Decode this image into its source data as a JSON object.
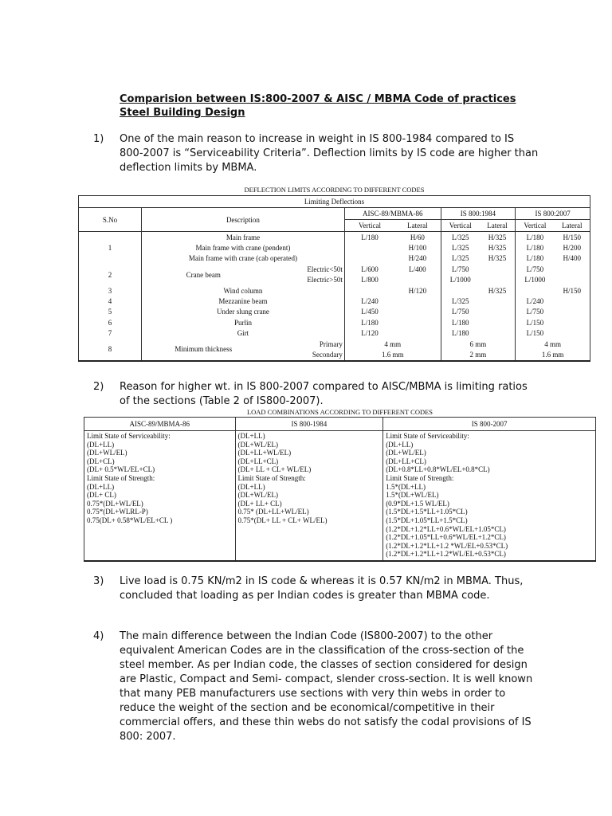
{
  "title_lines": [
    "Comparision between IS:800-2007 & AISC / MBMA Code of practices ",
    "Steel Building Design"
  ],
  "paragraphs": [
    {
      "num": "1)",
      "text": "One of the main reason to increase in weight in IS 800-1984 compared to IS 800-2007 is “Serviceability Criteria”. Deflection limits by IS code are higher than deflection limits by MBMA."
    },
    {
      "num": "2)",
      "text": "Reason for higher wt. in IS 800-2007 compared to AISC/MBMA is limiting ratios of the sections (Table 2 of IS800-2007)."
    },
    {
      "num": "3)",
      "text": "Live load is 0.75 KN/m2 in IS code & whereas it is 0.57 KN/m2 in MBMA. Thus, concluded that loading as per Indian codes is greater than MBMA code."
    },
    {
      "num": "4)",
      "text": "The main difference between the Indian Code (IS800-2007) to the other equivalent American Codes are in the classification of the cross-section of the steel member. As per Indian code, the classes of section considered for design are Plastic, Compact and Semi- compact, slender cross-section. It is well known that many PEB manufacturers use sections with very thin webs in order to reduce the weight of the section and be economical/competitive in their commercial offers, and these thin webs do not satisfy the codal provisions of IS 800: 2007."
    }
  ],
  "deflection_table": {
    "caption": "DEFLECTION LIMITS ACCORDING TO DIFFERENT CODES",
    "super_header": "Limiting Deflections",
    "sno_header": "S.No",
    "desc_header": "Description",
    "codes": [
      "AISC-89/MBMA-86",
      "IS 800:1984",
      "IS 800:2007"
    ],
    "sub_headers": [
      "Vertical",
      "Lateral"
    ],
    "groups": [
      {
        "sno": "1",
        "items": [
          {
            "desc": "Main frame",
            "v": [
              "L/180",
              "H/60",
              "L/325",
              "H/325",
              "L/180",
              "H/150"
            ]
          },
          {
            "desc": "Main frame with crane (pendent)",
            "v": [
              "",
              "H/100",
              "L/325",
              "H/325",
              "L/180",
              "H/200"
            ]
          },
          {
            "desc": "Main frame with crane (cab operated)",
            "v": [
              "",
              "H/240",
              "L/325",
              "H/325",
              "L/180",
              "H/400"
            ]
          }
        ]
      },
      {
        "sno": "2",
        "desc": "Crane beam",
        "items": [
          {
            "sub": "Electric<50t",
            "v": [
              "L/600",
              "L/400",
              "L/750",
              "",
              "L/750",
              ""
            ]
          },
          {
            "sub": "Electric>50t",
            "v": [
              "L/800",
              "",
              "L/1000",
              "",
              "L/1000",
              ""
            ]
          }
        ]
      },
      {
        "sno": "3",
        "items": [
          {
            "desc": "Wind column",
            "v": [
              "",
              "H/120",
              "",
              "H/325",
              "",
              "H/150"
            ]
          }
        ]
      },
      {
        "sno": "4",
        "items": [
          {
            "desc": "Mezzanine beam",
            "v": [
              "L/240",
              "",
              "L/325",
              "",
              "L/240",
              ""
            ]
          }
        ]
      },
      {
        "sno": "5",
        "items": [
          {
            "desc": "Under slung crane",
            "v": [
              "L/450",
              "",
              "L/750",
              "",
              "L/750",
              ""
            ]
          }
        ]
      },
      {
        "sno": "6",
        "items": [
          {
            "desc": "Purlin",
            "v": [
              "L/180",
              "",
              "L/180",
              "",
              "L/150",
              ""
            ]
          }
        ]
      },
      {
        "sno": "7",
        "items": [
          {
            "desc": "Girt",
            "v": [
              "L/120",
              "",
              "L/180",
              "",
              "L/150",
              ""
            ]
          }
        ]
      },
      {
        "sno": "8",
        "desc": "Minimum thickness",
        "items": [
          {
            "sub": "Primary",
            "v": [
              "4 mm",
              "6 mm",
              "4 mm"
            ]
          },
          {
            "sub": "Secondary",
            "v": [
              "1.6 mm",
              "2 mm",
              "1.6 mm"
            ]
          }
        ]
      }
    ]
  },
  "load_table": {
    "caption": "LOAD COMBINATIONS ACCORDING TO DIFFERENT CODES",
    "headers": [
      "AISC-89/MBMA-86",
      "IS 800-1984",
      "IS 800-2007"
    ],
    "columns": [
      [
        "Limit State of Serviceability:",
        "(DL+LL)",
        "(DL+WL/EL)",
        "(DL+CL)",
        "(DL+ 0.5*WL/EL+CL)",
        "Limit State of Strength:",
        "(DL+LL)",
        "(DL+ CL)",
        "0.75*(DL+WL/EL)",
        "0.75*(DL+WLRL-P)",
        "0.75(DL+ 0.58*WL/EL+CL )"
      ],
      [
        "(DL+LL)",
        "(DL+WL/EL)",
        "(DL+LL+WL/EL)",
        "(DL+LL+CL)",
        "(DL+ LL + CL+ WL/EL)",
        "Limit State of Strength:",
        "(DL+LL)",
        "(DL+WL/EL)",
        "(DL+ LL+ CL)",
        "0.75* (DL+LL+WL/EL)",
        "0.75*(DL+ LL + CL+ WL/EL)"
      ],
      [
        "Limit State of Serviceability:",
        "(DL+LL)",
        "(DL+WL/EL)",
        "(DL+LL+CL)",
        "(DL+0.8*LL+0.8*WL/EL+0.8*CL)",
        "Limit State of Strength:",
        "1.5*(DL+LL)",
        "1.5*(DL+WL/EL)",
        "(0.9*DL+1.5 WL/EL)",
        "(1.5*DL+1.5*LL+1.05*CL)",
        "(1.5*DL+1.05*LL+1.5*CL)",
        "(1.2*DL+1.2*LL+0.6*WL/EL+1.05*CL)",
        "(1.2*DL+1.05*LL+0.6*WL/EL+1.2*CL)",
        "(1.2*DL+1.2*LL+1.2 *WL/EL+0.53*CL)",
        "(1.2*DL+1.2*LL+1.2*WL/EL+0.53*CL)"
      ]
    ]
  }
}
